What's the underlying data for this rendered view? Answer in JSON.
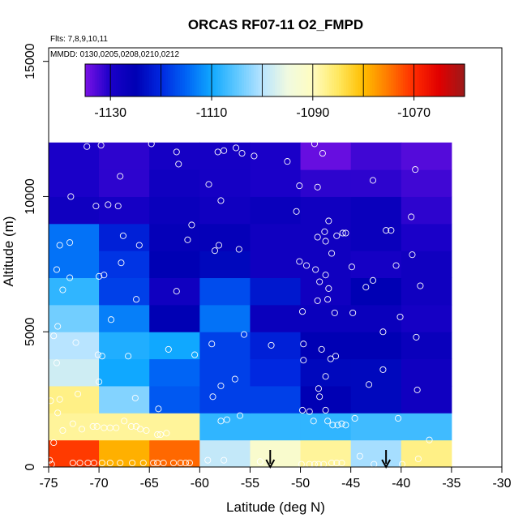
{
  "chart_data": {
    "type": "heatmap",
    "title": "ORCAS RF07-11 O2_FMPD",
    "subtitle": "Flts: 7,8,9,10,11",
    "note": "MMDD: 0130,0205,0208,0210,0212",
    "xlabel": "Latitude (deg N)",
    "ylabel": "Altitude (m)",
    "xlim": [
      -75,
      -30
    ],
    "ylim": [
      0,
      15500
    ],
    "x_ticks": [
      -75,
      -70,
      -65,
      -60,
      -55,
      -50,
      -45,
      -40,
      -35,
      -30
    ],
    "y_ticks": [
      0,
      5000,
      10000,
      15000
    ],
    "x_bins": [
      -75,
      -70,
      -65,
      -60,
      -55,
      -50,
      -45,
      -40,
      -35
    ],
    "y_bins": [
      0,
      1000,
      2000,
      3000,
      4000,
      5000,
      6000,
      7000,
      8000,
      9000,
      10000,
      11000,
      12000
    ],
    "cells": [
      [
        -1071,
        -1079,
        -1074,
        -1099,
        -1092,
        -1088,
        -1101,
        -1087
      ],
      [
        -1088,
        -1088,
        -1088,
        -1108,
        -1108,
        -1108,
        -1107,
        -1107
      ],
      [
        -1087,
        -1103,
        -1116,
        -1118,
        -1118,
        -1125,
        -1124,
        -1128
      ],
      [
        -1098,
        -1110,
        -1115,
        -1118,
        -1120,
        -1124,
        -1124,
        -1128
      ],
      [
        -1100,
        -1109,
        -1110,
        -1118,
        -1121,
        -1125,
        -1125,
        -1127
      ],
      [
        -1104,
        -1113,
        -1125,
        -1114,
        -1127,
        -1127,
        -1127,
        -1129
      ],
      [
        -1108,
        -1118,
        -1128,
        -1117,
        -1122,
        -1128,
        -1125,
        -1128
      ],
      [
        -1114,
        -1119,
        -1125,
        -1124,
        -1128,
        -1128,
        -1129,
        -1128
      ],
      [
        -1114,
        -1121,
        -1126,
        -1126,
        -1128,
        -1128,
        -1127,
        -1130
      ],
      [
        -1128,
        -1129,
        -1127,
        -1128,
        -1127,
        -1128,
        -1127,
        -1131
      ],
      [
        -1130,
        -1131,
        -1128,
        -1129,
        -1130,
        -1131,
        -1131,
        -1132
      ],
      [
        -1130,
        -1131,
        -1129,
        -1129,
        -1130,
        -1134,
        -1132,
        -1133
      ]
    ],
    "colorbar": {
      "range": [
        -1135,
        -1060
      ],
      "ticks": [
        -1130,
        -1110,
        -1090,
        -1070
      ],
      "palette": [
        "#7a12e6",
        "#1a00c8",
        "#0000b4",
        "#0028e0",
        "#0064f5",
        "#10a8ff",
        "#60c8ff",
        "#b8e4ff",
        "#f0fae0",
        "#fffcc0",
        "#ffe860",
        "#ffbe00",
        "#ff7800",
        "#ff2a00",
        "#e00000",
        "#9c1a1a"
      ]
    },
    "points": [
      [
        -71.2,
        11850
      ],
      [
        -69.8,
        11900
      ],
      [
        -64.8,
        11950
      ],
      [
        -62.3,
        11650
      ],
      [
        -62.1,
        11200
      ],
      [
        -58.2,
        11650
      ],
      [
        -57.6,
        11700
      ],
      [
        -56.4,
        11800
      ],
      [
        -55.8,
        11600
      ],
      [
        -54.6,
        11500
      ],
      [
        -51.3,
        11300
      ],
      [
        -48.6,
        11950
      ],
      [
        -47.8,
        11600
      ],
      [
        -38.6,
        11000
      ],
      [
        -72.8,
        10000
      ],
      [
        -67.9,
        10750
      ],
      [
        -59.1,
        10450
      ],
      [
        -57.9,
        9850
      ],
      [
        -50.1,
        10400
      ],
      [
        -48.3,
        10350
      ],
      [
        -42.8,
        10600
      ],
      [
        -70.3,
        9650
      ],
      [
        -69.1,
        9700
      ],
      [
        -68.1,
        9650
      ],
      [
        -50.4,
        9450
      ],
      [
        -47.2,
        9100
      ],
      [
        -39.0,
        9250
      ],
      [
        -73.9,
        8200
      ],
      [
        -72.9,
        8300
      ],
      [
        -67.6,
        8550
      ],
      [
        -66.0,
        8200
      ],
      [
        -61.2,
        8400
      ],
      [
        -60.8,
        8950
      ],
      [
        -58.5,
        8000
      ],
      [
        -58.1,
        8200
      ],
      [
        -56.1,
        8050
      ],
      [
        -48.3,
        8500
      ],
      [
        -47.6,
        8700
      ],
      [
        -46.4,
        8550
      ],
      [
        -45.8,
        8650
      ],
      [
        -45.5,
        8650
      ],
      [
        -41.5,
        8750
      ],
      [
        -41.0,
        8750
      ],
      [
        -38.9,
        7850
      ],
      [
        -47.5,
        8350
      ],
      [
        -74.2,
        7300
      ],
      [
        -72.9,
        7000
      ],
      [
        -70.0,
        7050
      ],
      [
        -69.5,
        7100
      ],
      [
        -67.8,
        7550
      ],
      [
        -66.3,
        6200
      ],
      [
        -62.3,
        6500
      ],
      [
        -50.1,
        7600
      ],
      [
        -49.4,
        7450
      ],
      [
        -48.5,
        7300
      ],
      [
        -47.5,
        7100
      ],
      [
        -46.9,
        7900
      ],
      [
        -44.9,
        7400
      ],
      [
        -42.8,
        6900
      ],
      [
        -40.5,
        7450
      ],
      [
        -38.1,
        6700
      ],
      [
        -48.1,
        6850
      ],
      [
        -43.5,
        6650
      ],
      [
        -73.6,
        6550
      ],
      [
        -47.2,
        6600
      ],
      [
        -48.3,
        6150
      ],
      [
        -47.3,
        6200
      ],
      [
        -49.8,
        5750
      ],
      [
        -46.6,
        5700
      ],
      [
        -44.8,
        5700
      ],
      [
        -40.1,
        5550
      ],
      [
        -74.1,
        5200
      ],
      [
        -68.8,
        5450
      ],
      [
        -55.6,
        4900
      ],
      [
        -41.8,
        5000
      ],
      [
        -74.5,
        4850
      ],
      [
        -72.3,
        4600
      ],
      [
        -70.1,
        4150
      ],
      [
        -69.7,
        4100
      ],
      [
        -67.1,
        4100
      ],
      [
        -63.1,
        4350
      ],
      [
        -60.5,
        4150
      ],
      [
        -58.8,
        4550
      ],
      [
        -52.9,
        4500
      ],
      [
        -49.7,
        4550
      ],
      [
        -47.9,
        4350
      ],
      [
        -47.0,
        4000
      ],
      [
        -46.5,
        4100
      ],
      [
        -38.5,
        4800
      ],
      [
        -49.7,
        3950
      ],
      [
        -74.2,
        3850
      ],
      [
        -70.0,
        3150
      ],
      [
        -57.9,
        3000
      ],
      [
        -56.5,
        3250
      ],
      [
        -43.2,
        3050
      ],
      [
        -41.8,
        3600
      ],
      [
        -47.5,
        3350
      ],
      [
        -48.2,
        2900
      ],
      [
        -38.4,
        2850
      ],
      [
        -74.8,
        2450
      ],
      [
        -73.9,
        2500
      ],
      [
        -72.1,
        2700
      ],
      [
        -66.4,
        2550
      ],
      [
        -64.1,
        2150
      ],
      [
        -58.7,
        2600
      ],
      [
        -49.8,
        2100
      ],
      [
        -49.1,
        2050
      ],
      [
        -48.1,
        2600
      ],
      [
        -48.7,
        1700
      ],
      [
        -47.5,
        2100
      ],
      [
        -47.3,
        1700
      ],
      [
        -46.8,
        1550
      ],
      [
        -46.3,
        1550
      ],
      [
        -45.9,
        1600
      ],
      [
        -45.5,
        1550
      ],
      [
        -44.6,
        1800
      ],
      [
        -40.3,
        1800
      ],
      [
        -37.2,
        1000
      ],
      [
        -74.1,
        2000
      ],
      [
        -73.6,
        1350
      ],
      [
        -72.6,
        1600
      ],
      [
        -71.7,
        1400
      ],
      [
        -70.6,
        1500
      ],
      [
        -70.2,
        1500
      ],
      [
        -69.5,
        1450
      ],
      [
        -68.9,
        1450
      ],
      [
        -68.3,
        1450
      ],
      [
        -67.5,
        1700
      ],
      [
        -66.8,
        1500
      ],
      [
        -66.3,
        1500
      ],
      [
        -65.9,
        1400
      ],
      [
        -65.3,
        1350
      ],
      [
        -64.2,
        1200
      ],
      [
        -63.9,
        1200
      ],
      [
        -63.3,
        1250
      ],
      [
        -57.9,
        1700
      ],
      [
        -57.3,
        1750
      ],
      [
        -56.0,
        1900
      ],
      [
        -74.5,
        900
      ],
      [
        -74.9,
        250
      ],
      [
        -74.7,
        100
      ],
      [
        -72.6,
        150
      ],
      [
        -71.9,
        150
      ],
      [
        -71.1,
        150
      ],
      [
        -70.5,
        150
      ],
      [
        -69.7,
        150
      ],
      [
        -68.9,
        150
      ],
      [
        -67.9,
        150
      ],
      [
        -66.7,
        150
      ],
      [
        -65.6,
        150
      ],
      [
        -64.6,
        150
      ],
      [
        -64.2,
        150
      ],
      [
        -63.6,
        150
      ],
      [
        -62.6,
        150
      ],
      [
        -61.9,
        150
      ],
      [
        -61.4,
        150
      ],
      [
        -61.0,
        150
      ],
      [
        -59.2,
        250
      ],
      [
        -57.6,
        250
      ],
      [
        -54.0,
        200
      ],
      [
        -49.9,
        100
      ],
      [
        -49.1,
        100
      ],
      [
        -48.6,
        100
      ],
      [
        -48.2,
        100
      ],
      [
        -47.7,
        100
      ],
      [
        -46.9,
        150
      ],
      [
        -46.4,
        150
      ],
      [
        -45.9,
        150
      ],
      [
        -44.1,
        400
      ],
      [
        -42.7,
        100
      ],
      [
        -39.9,
        100
      ],
      [
        -38.3,
        300
      ]
    ],
    "markers": [
      {
        "x": -53.0,
        "label": "arrow"
      },
      {
        "x": -41.5,
        "label": "arrow"
      }
    ]
  }
}
